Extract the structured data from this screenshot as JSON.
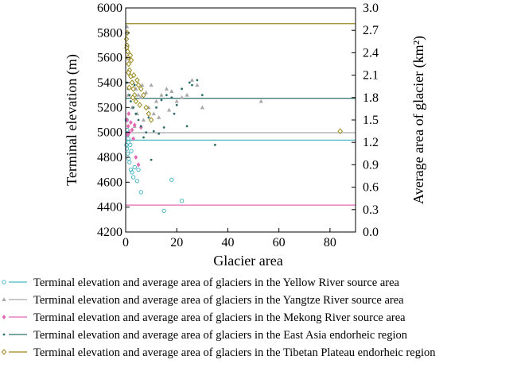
{
  "chart_data": {
    "type": "scatter",
    "xlabel": "Glacier area",
    "ylabel": "Terminal elevation (m)",
    "y2label": "Average area of glacier (km²)",
    "xlim": [
      0,
      90
    ],
    "ylim": [
      4200,
      6000
    ],
    "y2lim": [
      0.0,
      3.0
    ],
    "x_ticks": [
      "0",
      "20",
      "40",
      "60",
      "80"
    ],
    "y_ticks": [
      "4200",
      "4400",
      "4600",
      "4800",
      "5000",
      "5200",
      "5400",
      "5600",
      "5800",
      "6000"
    ],
    "y2_ticks": [
      "0.0",
      "0.3",
      "0.6",
      "0.9",
      "1.2",
      "1.5",
      "1.8",
      "2.1",
      "2.4",
      "2.7",
      "3.0"
    ],
    "grid": false,
    "legend_position": "bottom",
    "series": [
      {
        "name": "Terminal elevation and average area of glaciers in the Yellow River source area",
        "color": "#4cb8c4",
        "marker": "circle",
        "average_area": 1.23,
        "points": [
          [
            0.3,
            4900
          ],
          [
            0.5,
            4870
          ],
          [
            0.8,
            4830
          ],
          [
            1.0,
            4950
          ],
          [
            1.2,
            4790
          ],
          [
            0.6,
            5020
          ],
          [
            1.5,
            4760
          ],
          [
            2.0,
            4700
          ],
          [
            2.5,
            4680
          ],
          [
            3.0,
            4640
          ],
          [
            3.5,
            4720
          ],
          [
            5.0,
            4700
          ],
          [
            4.5,
            4610
          ],
          [
            6.0,
            4520
          ],
          [
            15.0,
            4370
          ],
          [
            18.0,
            4620
          ],
          [
            22.0,
            4450
          ],
          [
            0.4,
            5100
          ],
          [
            0.7,
            4980
          ],
          [
            1.8,
            4900
          ],
          [
            2.2,
            4850
          ],
          [
            1.1,
            4920
          ]
        ]
      },
      {
        "name": "Terminal elevation and average area of glaciers in the Yangtze River source area",
        "color": "#a8a8a8",
        "marker": "triangle",
        "average_area": 1.33,
        "points": [
          [
            0.5,
            5850
          ],
          [
            0.8,
            5700
          ],
          [
            1.2,
            5600
          ],
          [
            1.5,
            5500
          ],
          [
            2.0,
            5450
          ],
          [
            3.0,
            5400
          ],
          [
            4.0,
            5350
          ],
          [
            5.0,
            5300
          ],
          [
            6.0,
            5280
          ],
          [
            8.0,
            5320
          ],
          [
            10.0,
            5380
          ],
          [
            12.0,
            5250
          ],
          [
            14.0,
            5300
          ],
          [
            16.0,
            5350
          ],
          [
            18.0,
            5330
          ],
          [
            20.0,
            5250
          ],
          [
            22.0,
            5280
          ],
          [
            24.0,
            5300
          ],
          [
            26.0,
            5420
          ],
          [
            28.0,
            5380
          ],
          [
            30.0,
            5200
          ],
          [
            53.0,
            5250
          ],
          [
            2.5,
            5200
          ],
          [
            4.5,
            5150
          ],
          [
            7.0,
            5100
          ],
          [
            9.0,
            5200
          ],
          [
            11.0,
            5150
          ],
          [
            3.5,
            5050
          ],
          [
            1.0,
            5300
          ],
          [
            6.5,
            5380
          ],
          [
            13.0,
            5120
          ],
          [
            17.0,
            5180
          ]
        ]
      },
      {
        "name": "Terminal elevation and average area of glaciers in the Mekong River source area",
        "color": "#e06ab4",
        "marker": "diamond",
        "average_area": 0.36,
        "points": [
          [
            0.5,
            5100
          ],
          [
            1.0,
            5050
          ],
          [
            1.5,
            5000
          ],
          [
            2.0,
            5080
          ],
          [
            2.5,
            5020
          ],
          [
            3.0,
            4950
          ],
          [
            4.0,
            4800
          ],
          [
            5.0,
            4740
          ],
          [
            1.2,
            5150
          ],
          [
            0.8,
            4980
          ],
          [
            3.5,
            5060
          ],
          [
            6.0,
            5040
          ]
        ]
      },
      {
        "name": "Terminal elevation and average area of glaciers in the East Asia endorheic region",
        "color": "#2d6e6a",
        "marker": "dot",
        "average_area": 1.79,
        "points": [
          [
            0.5,
            5400
          ],
          [
            1.0,
            5350
          ],
          [
            1.5,
            5300
          ],
          [
            2.0,
            5250
          ],
          [
            3.0,
            5200
          ],
          [
            4.0,
            5150
          ],
          [
            5.0,
            5100
          ],
          [
            6.0,
            5050
          ],
          [
            8.0,
            5000
          ],
          [
            10.0,
            4780
          ],
          [
            12.0,
            5200
          ],
          [
            14.0,
            5260
          ],
          [
            16.0,
            5300
          ],
          [
            18.0,
            5280
          ],
          [
            20.0,
            5220
          ],
          [
            22.0,
            5350
          ],
          [
            24.0,
            5050
          ],
          [
            26.0,
            5380
          ],
          [
            28.0,
            5420
          ],
          [
            30.0,
            5300
          ],
          [
            35.0,
            4900
          ],
          [
            25.0,
            5400
          ],
          [
            11.0,
            5010
          ],
          [
            13.0,
            4990
          ],
          [
            7.0,
            4960
          ],
          [
            9.0,
            5120
          ],
          [
            2.5,
            5450
          ],
          [
            3.5,
            5380
          ],
          [
            15.0,
            5040
          ],
          [
            19.0,
            5150
          ]
        ]
      },
      {
        "name": "Terminal elevation and average area of glaciers in the Tibetan Plateau endorheic region",
        "color": "#9a8a1e",
        "marker": "diamond-open",
        "average_area": 2.79,
        "points": [
          [
            0.3,
            5750
          ],
          [
            0.5,
            5700
          ],
          [
            0.8,
            5650
          ],
          [
            1.0,
            5600
          ],
          [
            1.2,
            5550
          ],
          [
            1.5,
            5500
          ],
          [
            2.0,
            5450
          ],
          [
            2.5,
            5400
          ],
          [
            3.0,
            5350
          ],
          [
            3.5,
            5300
          ],
          [
            4.0,
            5250
          ],
          [
            0.6,
            5800
          ],
          [
            1.8,
            5620
          ],
          [
            2.2,
            5580
          ],
          [
            4.5,
            5420
          ],
          [
            5.0,
            5380
          ],
          [
            6.0,
            5350
          ],
          [
            7.0,
            5300
          ],
          [
            8.0,
            5200
          ],
          [
            9.0,
            5150
          ],
          [
            10.0,
            5100
          ],
          [
            84.0,
            5010
          ],
          [
            0.4,
            5680
          ],
          [
            1.1,
            5480
          ],
          [
            1.4,
            5360
          ],
          [
            2.8,
            5280
          ],
          [
            3.2,
            5460
          ],
          [
            5.5,
            5220
          ]
        ]
      }
    ]
  }
}
